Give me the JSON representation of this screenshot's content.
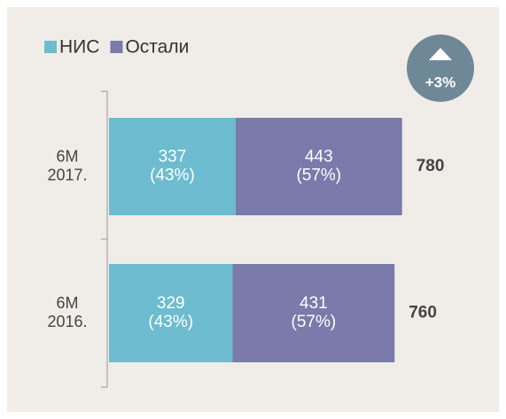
{
  "chart_data": {
    "type": "bar",
    "orientation": "horizontal",
    "stacked": true,
    "categories": [
      "6M 2017.",
      "6M 2016."
    ],
    "series": [
      {
        "name": "НИС",
        "color": "#6dbccf",
        "values": [
          337,
          329
        ],
        "value_labels": [
          "337 (43%)",
          "329 (43%)"
        ]
      },
      {
        "name": "Остали",
        "color": "#7a7bab",
        "values": [
          443,
          431
        ],
        "value_labels": [
          "443 (57%)",
          "431 (57%)"
        ]
      }
    ],
    "totals": [
      780,
      760
    ],
    "annotation": "+3%",
    "xlim": [
      0,
      1000
    ],
    "legend": "top-left"
  }
}
